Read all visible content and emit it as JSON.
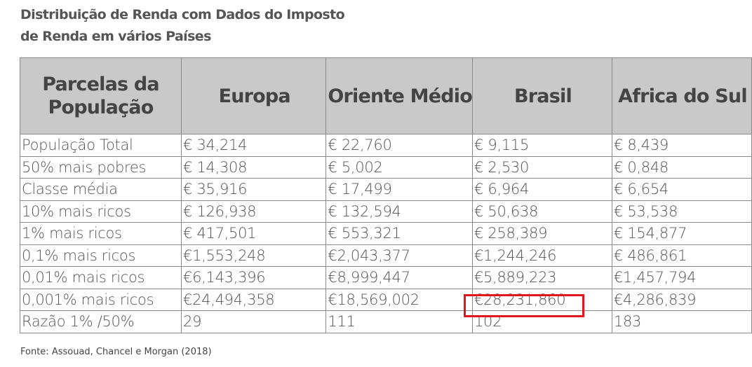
{
  "title_line1": "Distribuição de Renda com Dados do Imposto",
  "title_line2": "de Renda em vários Países",
  "headers": [
    "Parcelas da População",
    "Europa",
    "Oriente Médio",
    "Brasil",
    "Africa do Sul"
  ],
  "rows": [
    [
      "População Total",
      "€ 34,214",
      "€ 22,760",
      "€ 9,115",
      "€ 8,439"
    ],
    [
      "50% mais pobres",
      "€ 14,308",
      "€ 5,002",
      "€ 2,530",
      "€ 0,848"
    ],
    [
      "Classe média",
      "€ 35,916",
      "€ 17,499",
      "€ 6,964",
      "€ 6,654"
    ],
    [
      "10% mais ricos",
      "€ 126,938",
      "€ 132,594",
      "€ 50,638",
      "€ 53,538"
    ],
    [
      "1% mais ricos",
      "€ 417,501",
      "€ 553,321",
      "€ 258,389",
      "€ 154,877"
    ],
    [
      "0,1% mais ricos",
      "€1,553,248",
      "€2,043,377",
      "€1,244,246",
      "€ 486,861"
    ],
    [
      "0,01% mais ricos",
      "€6,143,396",
      "€8,999,447",
      "€5,889,223",
      "€1,457,794"
    ],
    [
      "0,001% mais ricos",
      "€24,494,358",
      "€18,569,002",
      "€28,231,860",
      "€4,286,839"
    ],
    [
      "Razão 1% /50%",
      "29",
      "111",
      "102",
      "183"
    ]
  ],
  "highlight_color": "#e0151d",
  "source": "Fonte: Assouad, Chancel e Morgan (2018)"
}
